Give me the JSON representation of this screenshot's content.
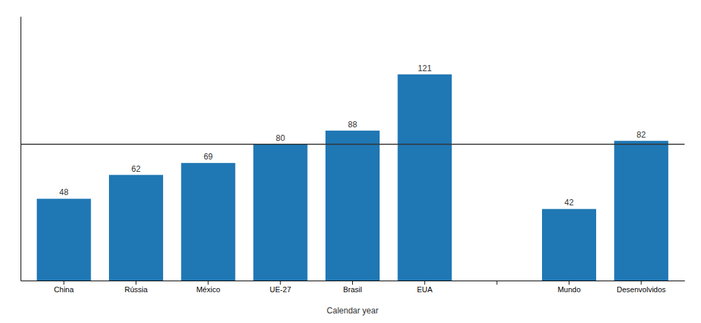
{
  "chart_data": {
    "type": "bar",
    "categories": [
      "China",
      "Rússia",
      "México",
      "UE-27",
      "Brasil",
      "EUA",
      null,
      "Mundo",
      "Desenvolvidos"
    ],
    "values": [
      48,
      62,
      69,
      80,
      88,
      121,
      null,
      42,
      82
    ],
    "xlabel": "Calendar year",
    "ylim": [
      0,
      155
    ],
    "reference_line": 80,
    "data_labels": true,
    "tick_labels": "x",
    "grid": false
  }
}
